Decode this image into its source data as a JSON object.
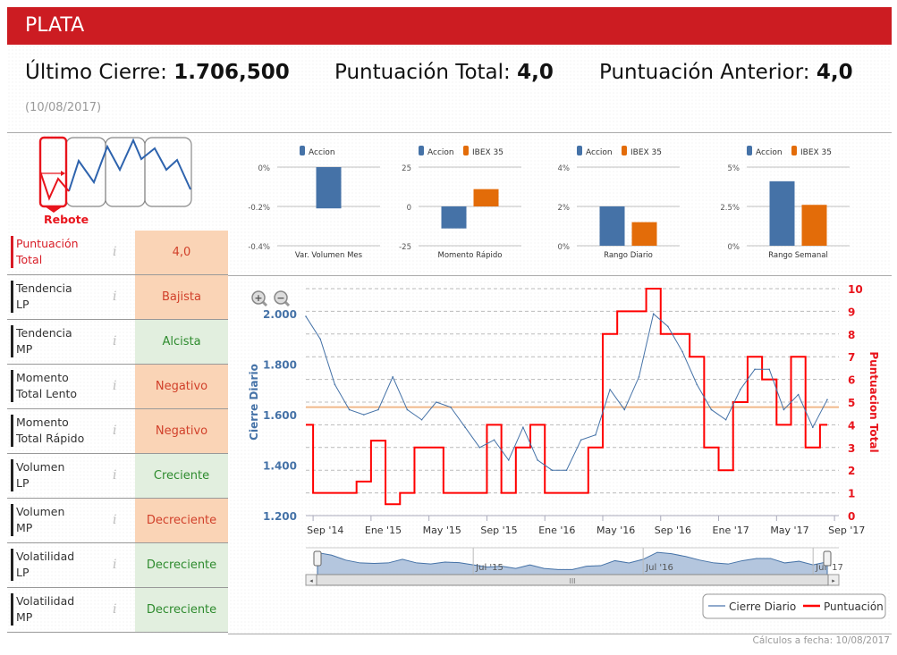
{
  "header": {
    "title": "PLATA"
  },
  "stats": {
    "last_close_label": "Último Cierre:",
    "last_close_value": "1.706,500",
    "total_score_label": "Puntuación Total:",
    "total_score_value": "4,0",
    "prev_score_label": "Puntuación Anterior:",
    "prev_score_value": "4,0",
    "date": "(10/08/2017)"
  },
  "pattern": {
    "label": "Rebote",
    "color": "#e8141c"
  },
  "indicators": [
    {
      "label1": "Puntuación",
      "label2": "Total",
      "value": "4,0",
      "status": "neg"
    },
    {
      "label1": "Tendencia",
      "label2": "LP",
      "value": "Bajista",
      "status": "neg"
    },
    {
      "label1": "Tendencia",
      "label2": "MP",
      "value": "Alcista",
      "status": "pos"
    },
    {
      "label1": "Momento",
      "label2": "Total Lento",
      "value": "Negativo",
      "status": "neg"
    },
    {
      "label1": "Momento",
      "label2": "Total Rápido",
      "value": "Negativo",
      "status": "neg"
    },
    {
      "label1": "Volumen",
      "label2": "LP",
      "value": "Creciente",
      "status": "pos"
    },
    {
      "label1": "Volumen",
      "label2": "MP",
      "value": "Decreciente",
      "status": "neg"
    },
    {
      "label1": "Volatilidad",
      "label2": "LP",
      "value": "Decreciente",
      "status": "pos"
    },
    {
      "label1": "Volatilidad",
      "label2": "MP",
      "value": "Decreciente",
      "status": "pos"
    }
  ],
  "info_icon": "i",
  "colors": {
    "accion": "#4572a7",
    "ibex": "#e36c09",
    "close": "#4572a7",
    "score": "#ff0000",
    "reference": "#f0b98a",
    "header": "#cc1c22"
  },
  "chart_data": [
    {
      "type": "bar",
      "xlabel": "Var. Volumen Mes",
      "legend": [
        "Accion"
      ],
      "ticks": [
        "0%",
        "-0.2%",
        "-0.4%"
      ],
      "ylim": [
        -0.4,
        0
      ],
      "series": [
        {
          "name": "Accion",
          "values": [
            -0.21
          ]
        }
      ]
    },
    {
      "type": "bar",
      "xlabel": "Momento Rápido",
      "legend": [
        "Accion",
        "IBEX 35"
      ],
      "ticks": [
        "25",
        "0",
        "-25"
      ],
      "ylim": [
        -25,
        25
      ],
      "series": [
        {
          "name": "Accion",
          "values": [
            -14
          ]
        },
        {
          "name": "IBEX 35",
          "values": [
            11
          ]
        }
      ]
    },
    {
      "type": "bar",
      "xlabel": "Rango Diario",
      "legend": [
        "Accion",
        "IBEX 35"
      ],
      "ticks": [
        "4%",
        "2%",
        "0%"
      ],
      "ylim": [
        0,
        4
      ],
      "series": [
        {
          "name": "Accion",
          "values": [
            2.0
          ]
        },
        {
          "name": "IBEX 35",
          "values": [
            1.2
          ]
        }
      ]
    },
    {
      "type": "bar",
      "xlabel": "Rango Semanal",
      "legend": [
        "Accion",
        "IBEX 35"
      ],
      "ticks": [
        "5%",
        "2.5%",
        "0%"
      ],
      "ylim": [
        0,
        5
      ],
      "series": [
        {
          "name": "Accion",
          "values": [
            4.1
          ]
        },
        {
          "name": "IBEX 35",
          "values": [
            2.6
          ]
        }
      ]
    },
    {
      "type": "line",
      "ylabel": "Cierre Diario",
      "ylabel_right": "Puntuacion Total",
      "ylim": [
        1.2,
        2.1
      ],
      "ylim_right": [
        0,
        10
      ],
      "yticks": [
        "2.000",
        "1.800",
        "1.600",
        "1.400",
        "1.200"
      ],
      "yticks_right": [
        "10",
        "9",
        "8",
        "7",
        "6",
        "5",
        "4",
        "3",
        "2",
        "1",
        "0"
      ],
      "xticks": [
        "Sep '14",
        "Ene '15",
        "May '15",
        "Sep '15",
        "Ene '16",
        "May '16",
        "Sep '16",
        "Ene '17",
        "May '17",
        "Sep '17"
      ],
      "navigator_labels": [
        "Jul '15",
        "Jul '16",
        "Jul '17"
      ],
      "x": [
        "2014-08",
        "2014-09",
        "2014-10",
        "2014-11",
        "2014-12",
        "2015-01",
        "2015-02",
        "2015-03",
        "2015-04",
        "2015-05",
        "2015-06",
        "2015-07",
        "2015-08",
        "2015-09",
        "2015-10",
        "2015-11",
        "2015-12",
        "2016-01",
        "2016-02",
        "2016-03",
        "2016-04",
        "2016-05",
        "2016-06",
        "2016-07",
        "2016-08",
        "2016-09",
        "2016-10",
        "2016-11",
        "2016-12",
        "2017-01",
        "2017-02",
        "2017-03",
        "2017-04",
        "2017-05",
        "2017-06",
        "2017-07",
        "2017-08"
      ],
      "series": [
        {
          "name": "Cierre Diario",
          "axis": "left",
          "values": [
            1.99,
            1.9,
            1.72,
            1.62,
            1.6,
            1.62,
            1.75,
            1.62,
            1.58,
            1.65,
            1.63,
            1.55,
            1.47,
            1.5,
            1.42,
            1.55,
            1.42,
            1.38,
            1.38,
            1.5,
            1.52,
            1.7,
            1.62,
            1.75,
            2.0,
            1.95,
            1.85,
            1.72,
            1.62,
            1.58,
            1.7,
            1.78,
            1.78,
            1.62,
            1.68,
            1.55,
            1.66
          ]
        },
        {
          "name": "Puntuación",
          "axis": "right",
          "step": true,
          "values": [
            4,
            1,
            1,
            1,
            1.5,
            3.3,
            0.5,
            1,
            3,
            3,
            1,
            1,
            1,
            4,
            1,
            3,
            4,
            1,
            1,
            1,
            3,
            8,
            9,
            9,
            10,
            8,
            8,
            7,
            3,
            2,
            5,
            7,
            6,
            4,
            7,
            3,
            4
          ]
        }
      ],
      "reference_line": 1.63,
      "legend": [
        "Cierre Diario",
        "Puntuación"
      ],
      "legend_placement": "bottom-right",
      "grid": true
    }
  ],
  "footer": {
    "text": "Cálculos a fecha: 10/08/2017"
  }
}
